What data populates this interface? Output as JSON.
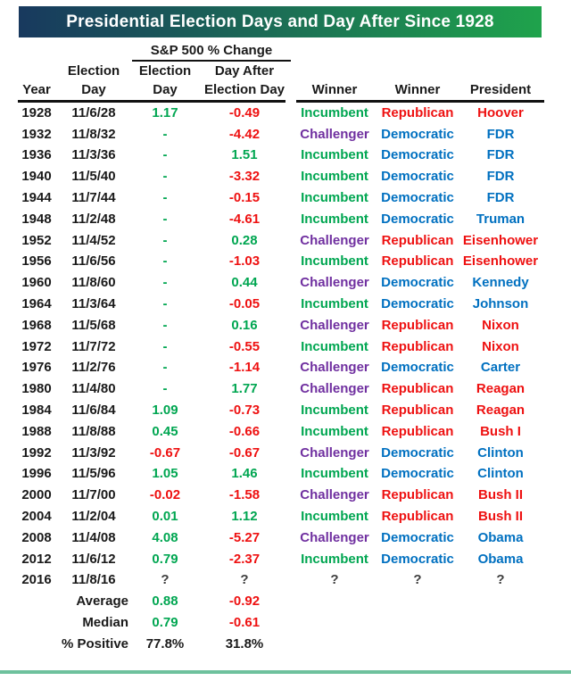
{
  "title": "Presidential Election Days and Day After Since 1928",
  "table": {
    "group_header": "S&P 500 % Change",
    "headers": {
      "year": "Year",
      "date_line1": "Election",
      "date_line2": "Day",
      "ed_line1": "Election",
      "ed_line2": "Day",
      "da_line1": "Day After",
      "da_line2": "Election Day",
      "winner_status": "Winner",
      "winner_party": "Winner",
      "president": "President"
    }
  },
  "chart_data": {
    "type": "table",
    "title": "Presidential Election Days and Day After Since 1928",
    "column_group": {
      "label": "S&P 500 % Change",
      "spans": [
        "Election Day",
        "Day After Election Day"
      ]
    },
    "columns": [
      "Year",
      "Election Day",
      "Election Day % Change",
      "Day After Election Day % Change",
      "Winner",
      "Winner",
      "President"
    ],
    "rows": [
      {
        "year": "1928",
        "election_day": "11/6/28",
        "ed_change": "1.17",
        "day_after_change": "-0.49",
        "winner_status": "Incumbent",
        "winner_party": "Republican",
        "president": "Hoover"
      },
      {
        "year": "1932",
        "election_day": "11/8/32",
        "ed_change": "-",
        "day_after_change": "-4.42",
        "winner_status": "Challenger",
        "winner_party": "Democratic",
        "president": "FDR"
      },
      {
        "year": "1936",
        "election_day": "11/3/36",
        "ed_change": "-",
        "day_after_change": "1.51",
        "winner_status": "Incumbent",
        "winner_party": "Democratic",
        "president": "FDR"
      },
      {
        "year": "1940",
        "election_day": "11/5/40",
        "ed_change": "-",
        "day_after_change": "-3.32",
        "winner_status": "Incumbent",
        "winner_party": "Democratic",
        "president": "FDR"
      },
      {
        "year": "1944",
        "election_day": "11/7/44",
        "ed_change": "-",
        "day_after_change": "-0.15",
        "winner_status": "Incumbent",
        "winner_party": "Democratic",
        "president": "FDR"
      },
      {
        "year": "1948",
        "election_day": "11/2/48",
        "ed_change": "-",
        "day_after_change": "-4.61",
        "winner_status": "Incumbent",
        "winner_party": "Democratic",
        "president": "Truman"
      },
      {
        "year": "1952",
        "election_day": "11/4/52",
        "ed_change": "-",
        "day_after_change": "0.28",
        "winner_status": "Challenger",
        "winner_party": "Republican",
        "president": "Eisenhower"
      },
      {
        "year": "1956",
        "election_day": "11/6/56",
        "ed_change": "-",
        "day_after_change": "-1.03",
        "winner_status": "Incumbent",
        "winner_party": "Republican",
        "president": "Eisenhower"
      },
      {
        "year": "1960",
        "election_day": "11/8/60",
        "ed_change": "-",
        "day_after_change": "0.44",
        "winner_status": "Challenger",
        "winner_party": "Democratic",
        "president": "Kennedy"
      },
      {
        "year": "1964",
        "election_day": "11/3/64",
        "ed_change": "-",
        "day_after_change": "-0.05",
        "winner_status": "Incumbent",
        "winner_party": "Democratic",
        "president": "Johnson"
      },
      {
        "year": "1968",
        "election_day": "11/5/68",
        "ed_change": "-",
        "day_after_change": "0.16",
        "winner_status": "Challenger",
        "winner_party": "Republican",
        "president": "Nixon"
      },
      {
        "year": "1972",
        "election_day": "11/7/72",
        "ed_change": "-",
        "day_after_change": "-0.55",
        "winner_status": "Incumbent",
        "winner_party": "Republican",
        "president": "Nixon"
      },
      {
        "year": "1976",
        "election_day": "11/2/76",
        "ed_change": "-",
        "day_after_change": "-1.14",
        "winner_status": "Challenger",
        "winner_party": "Democratic",
        "president": "Carter"
      },
      {
        "year": "1980",
        "election_day": "11/4/80",
        "ed_change": "-",
        "day_after_change": "1.77",
        "winner_status": "Challenger",
        "winner_party": "Republican",
        "president": "Reagan"
      },
      {
        "year": "1984",
        "election_day": "11/6/84",
        "ed_change": "1.09",
        "day_after_change": "-0.73",
        "winner_status": "Incumbent",
        "winner_party": "Republican",
        "president": "Reagan"
      },
      {
        "year": "1988",
        "election_day": "11/8/88",
        "ed_change": "0.45",
        "day_after_change": "-0.66",
        "winner_status": "Incumbent",
        "winner_party": "Republican",
        "president": "Bush I"
      },
      {
        "year": "1992",
        "election_day": "11/3/92",
        "ed_change": "-0.67",
        "day_after_change": "-0.67",
        "winner_status": "Challenger",
        "winner_party": "Democratic",
        "president": "Clinton"
      },
      {
        "year": "1996",
        "election_day": "11/5/96",
        "ed_change": "1.05",
        "day_after_change": "1.46",
        "winner_status": "Incumbent",
        "winner_party": "Democratic",
        "president": "Clinton"
      },
      {
        "year": "2000",
        "election_day": "11/7/00",
        "ed_change": "-0.02",
        "day_after_change": "-1.58",
        "winner_status": "Challenger",
        "winner_party": "Republican",
        "president": "Bush II"
      },
      {
        "year": "2004",
        "election_day": "11/2/04",
        "ed_change": "0.01",
        "day_after_change": "1.12",
        "winner_status": "Incumbent",
        "winner_party": "Republican",
        "president": "Bush II"
      },
      {
        "year": "2008",
        "election_day": "11/4/08",
        "ed_change": "4.08",
        "day_after_change": "-5.27",
        "winner_status": "Challenger",
        "winner_party": "Democratic",
        "president": "Obama"
      },
      {
        "year": "2012",
        "election_day": "11/6/12",
        "ed_change": "0.79",
        "day_after_change": "-2.37",
        "winner_status": "Incumbent",
        "winner_party": "Democratic",
        "president": "Obama"
      },
      {
        "year": "2016",
        "election_day": "11/8/16",
        "ed_change": "?",
        "day_after_change": "?",
        "winner_status": "?",
        "winner_party": "?",
        "president": "?"
      }
    ],
    "summary_rows": [
      {
        "label": "Average",
        "ed_change": "0.88",
        "day_after_change": "-0.92",
        "style": "signed"
      },
      {
        "label": "Median",
        "ed_change": "0.79",
        "day_after_change": "-0.61",
        "style": "signed"
      },
      {
        "label": "% Positive",
        "ed_change": "77.8%",
        "day_after_change": "31.8%",
        "style": "plain"
      }
    ]
  },
  "colors": {
    "green": "#00A651",
    "red": "#EE1111",
    "purple": "#7030A0",
    "blue": "#0070C0",
    "neutral": "#3d3d3d",
    "banner_left": "#18395E",
    "banner_right": "#1FA34C",
    "bottom_rule": "#6EC19D"
  }
}
